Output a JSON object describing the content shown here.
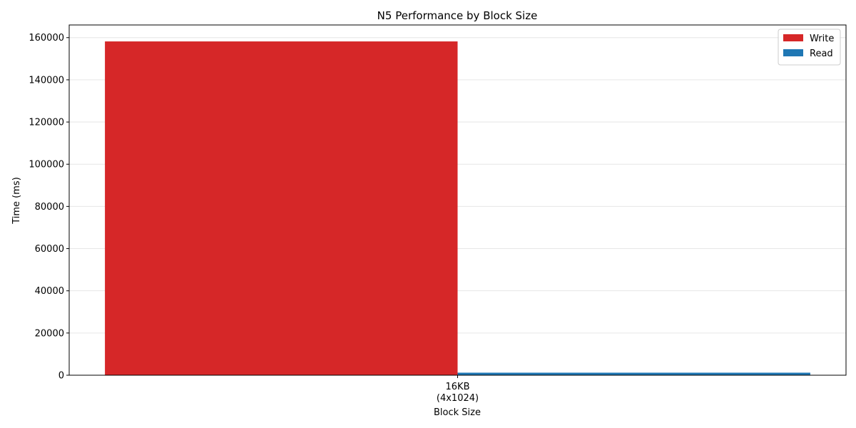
{
  "chart_data": {
    "type": "bar",
    "title": "N5 Performance by Block Size",
    "xlabel": "Block Size",
    "ylabel": "Time (ms)",
    "categories": [
      "16KB\n(4x1024)"
    ],
    "series": [
      {
        "name": "Write",
        "values": [
          158200
        ],
        "color": "#d62728"
      },
      {
        "name": "Read",
        "values": [
          1200
        ],
        "color": "#1f77b4"
      }
    ],
    "ylim": [
      0,
      166000
    ],
    "yticks": [
      0,
      20000,
      40000,
      60000,
      80000,
      100000,
      120000,
      140000,
      160000
    ],
    "grid": "y",
    "legend_position": "top-right"
  }
}
